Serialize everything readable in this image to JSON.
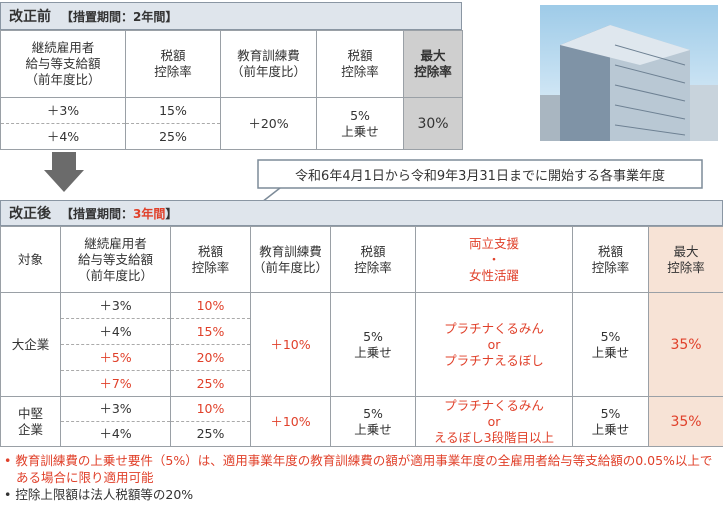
{
  "before": {
    "heading": "改正前",
    "period": "【措置期間：2年間】",
    "table": {
      "header": [
        "継続雇用者\n給与等支給額\n（前年度比）",
        "税額\n控除率",
        "教育訓練費\n（前年度比）",
        "税額\n控除率",
        "最大\n控除率"
      ],
      "rows": [
        [
          "＋3%",
          "15%",
          "＋20%",
          "5%\n上乗せ",
          "30%"
        ],
        [
          "＋4%",
          "25%"
        ]
      ]
    }
  },
  "date_range": "令和6年4月1日から令和9年3月31日までに開始する各事業年度",
  "after": {
    "heading": "改正後",
    "period_prefix": "【措置期間：",
    "period_highlight": "3年間",
    "period_suffix": "】",
    "table": {
      "header": [
        "対象",
        "継続雇用者\n給与等支給額\n（前年度比）",
        "税額\n控除率",
        "教育訓練費\n（前年度比）",
        "税額\n控除率",
        "両立支援\n・\n女性活躍",
        "税額\n控除率",
        "最大\n控除率"
      ],
      "groups": [
        {
          "target": "大企業",
          "rows": [
            [
              "＋3%",
              "10%"
            ],
            [
              "＋4%",
              "15%"
            ],
            [
              "＋5%",
              "20%"
            ],
            [
              "＋7%",
              "25%"
            ]
          ],
          "education": "＋10%",
          "education_rate": "5%\n上乗せ",
          "support": "プラチナくるみん\nor\nプラチナえるぼし",
          "support_rate": "5%\n上乗せ",
          "max": "35%"
        },
        {
          "target": "中堅\n企業",
          "rows": [
            [
              "＋3%",
              "10%"
            ],
            [
              "＋4%",
              "25%"
            ]
          ],
          "education": "＋10%",
          "education_rate": "5%\n上乗せ",
          "support": "プラチナくるみん\nor\nえるぼし3段階目以上",
          "support_rate": "5%\n上乗せ",
          "max": "35%"
        }
      ]
    }
  },
  "notes": [
    "教育訓練費の上乗せ要件（5%）は、適用事業年度の教育訓練費の額が適用事業年度の全雇用者給与等支給額の0.05%以上である場合に限り適用可能",
    "控除上限額は法人税額等の20%"
  ]
}
